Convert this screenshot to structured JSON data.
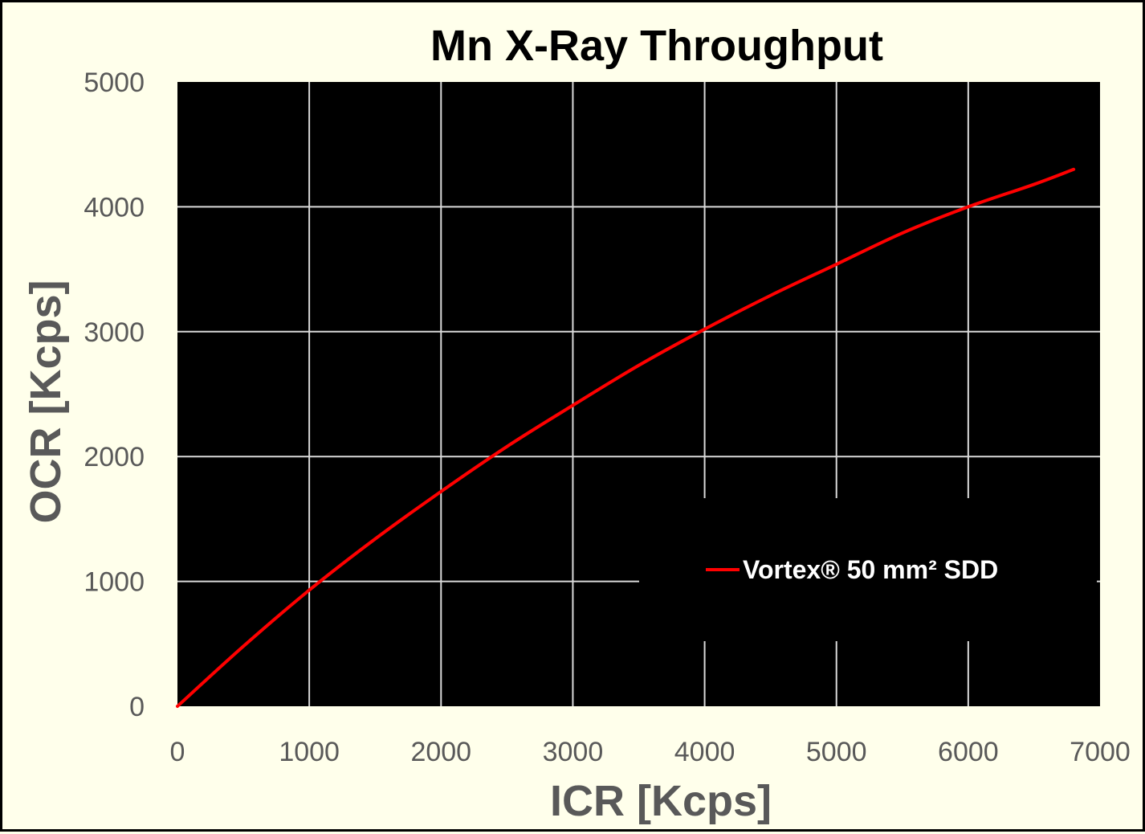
{
  "chart_data": {
    "type": "line",
    "title": "Mn X-Ray Throughput",
    "xlabel": "ICR [Kcps]",
    "ylabel": "OCR [Kcps]",
    "xlim": [
      0,
      7000
    ],
    "ylim": [
      0,
      5000
    ],
    "xticks": [
      "0",
      "1000",
      "2000",
      "3000",
      "4000",
      "5000",
      "6000",
      "7000"
    ],
    "yticks": [
      "0",
      "1000",
      "2000",
      "3000",
      "4000",
      "5000"
    ],
    "grid": true,
    "legend_position": "bottom-right",
    "plot_background": "#000000",
    "page_background": "#FFFFEB",
    "series": [
      {
        "name": "Vortex® 50 mm² SDD",
        "color": "#FF0000",
        "x": [
          0,
          500,
          1000,
          1500,
          2000,
          2500,
          3000,
          3500,
          4000,
          4500,
          5000,
          5500,
          6000,
          6500,
          6800
        ],
        "y": [
          0,
          480,
          930,
          1340,
          1720,
          2080,
          2410,
          2730,
          3020,
          3290,
          3540,
          3790,
          4000,
          4180,
          4300
        ]
      }
    ]
  }
}
